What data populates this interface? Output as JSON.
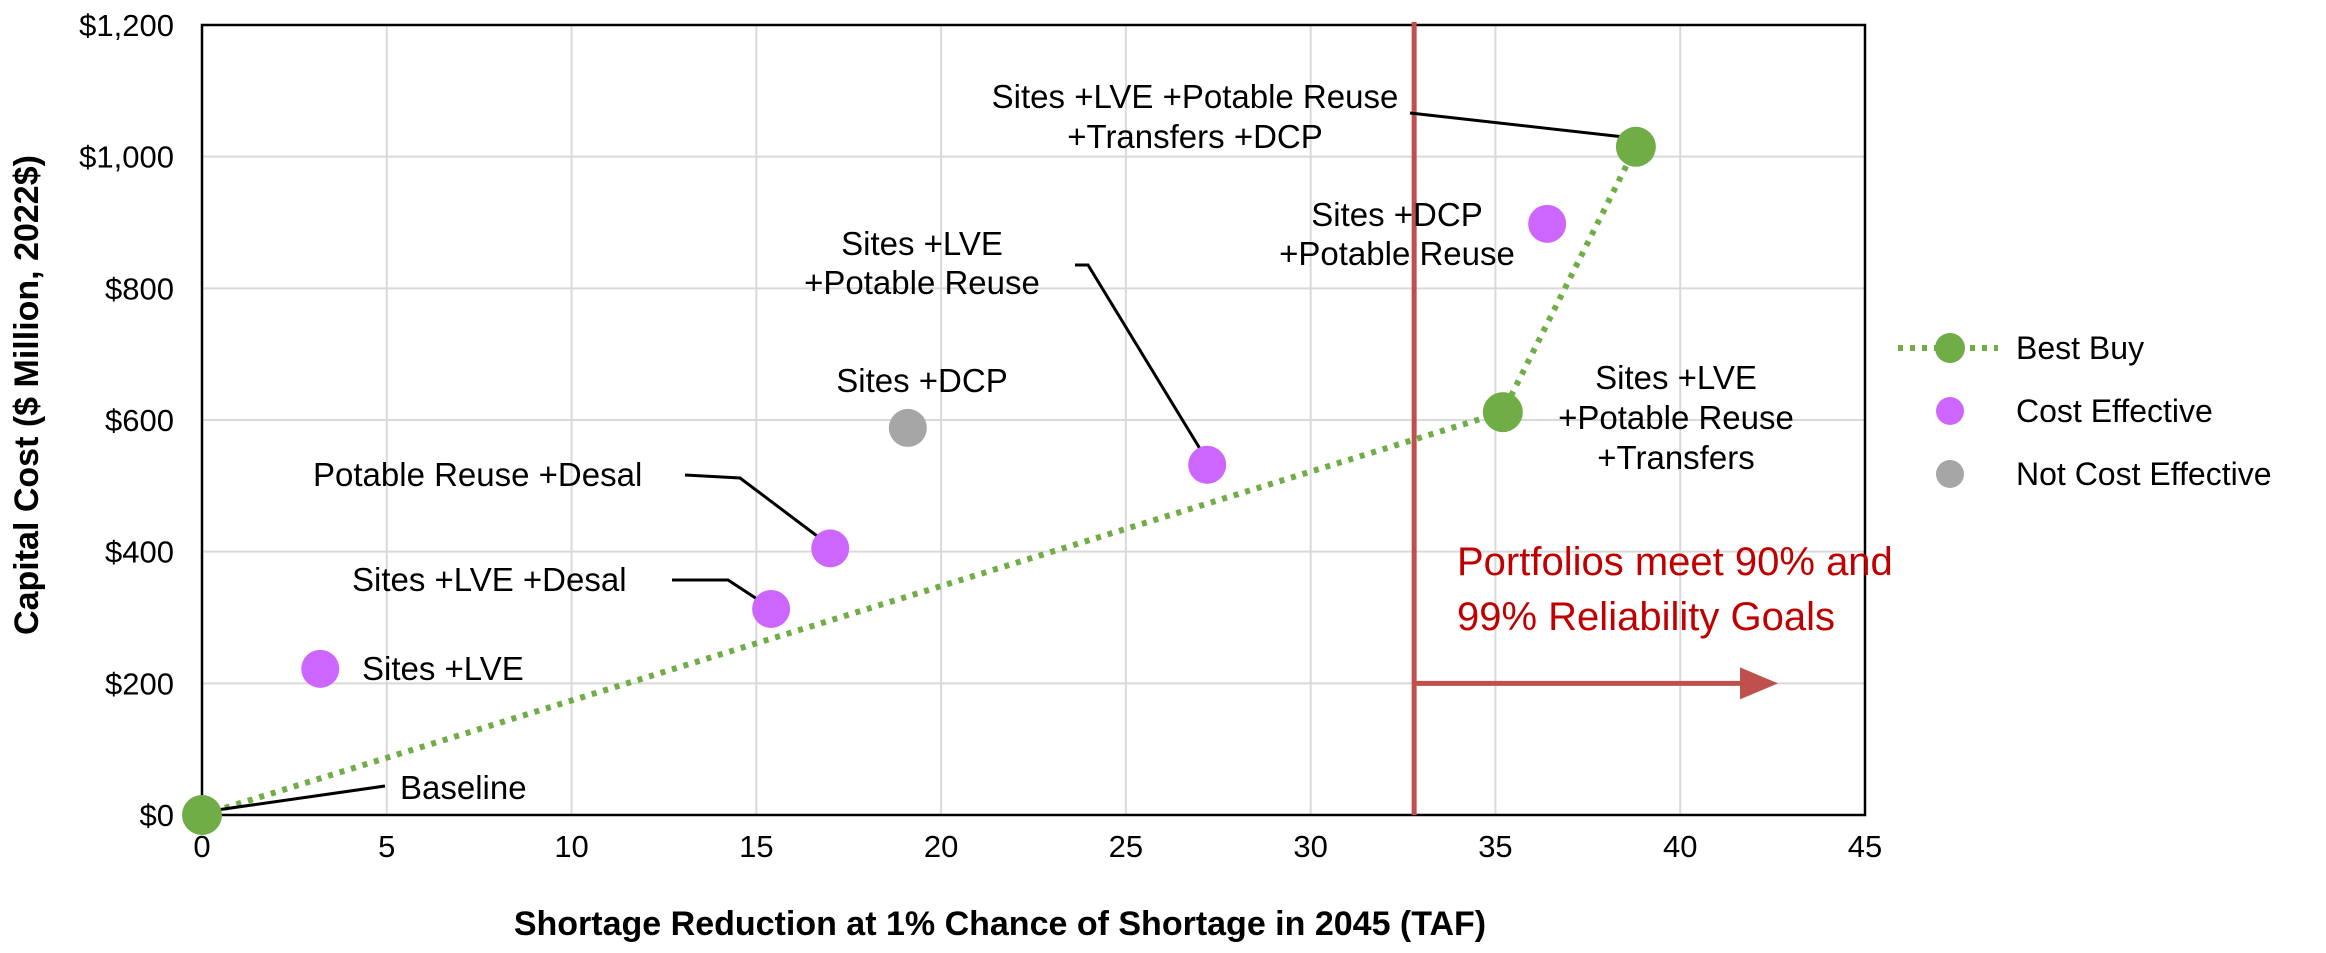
{
  "chart_data": {
    "type": "scatter",
    "xlabel": "Shortage Reduction at 1% Chance of Shortage in 2045 (TAF)",
    "ylabel": "Capital Cost ($ Million, 2022$)",
    "xlim": [
      0,
      45
    ],
    "ylim": [
      0,
      1200
    ],
    "x_ticks": [
      "0",
      "5",
      "10",
      "15",
      "20",
      "25",
      "30",
      "35",
      "40",
      "45"
    ],
    "y_ticks": [
      "$0",
      "$200",
      "$400",
      "$600",
      "$800",
      "$1,000",
      "$1,200"
    ],
    "grid": true,
    "legend_position": "right",
    "legend": [
      {
        "name": "Best Buy",
        "color": "#70ad47"
      },
      {
        "name": "Cost Effective",
        "color": "#cc66ff"
      },
      {
        "name": "Not Cost Effective",
        "color": "#a6a6a6"
      }
    ],
    "series": [
      {
        "name": "Best Buy",
        "color": "#70ad47",
        "line": "dotted",
        "points": [
          {
            "x": 0,
            "y": 0,
            "label": "Baseline"
          },
          {
            "x": 35.2,
            "y": 612,
            "label": "Sites +LVE +Potable Reuse +Transfers"
          },
          {
            "x": 38.8,
            "y": 1015,
            "label": "Sites +LVE +Potable Reuse +Transfers +DCP"
          }
        ]
      },
      {
        "name": "Cost Effective",
        "color": "#cc66ff",
        "points": [
          {
            "x": 3.2,
            "y": 222,
            "label": "Sites +LVE"
          },
          {
            "x": 15.4,
            "y": 313,
            "label": "Sites +LVE +Desal"
          },
          {
            "x": 17.0,
            "y": 405,
            "label": "Potable Reuse +Desal"
          },
          {
            "x": 27.2,
            "y": 532,
            "label": "Sites +LVE +Potable Reuse"
          },
          {
            "x": 36.4,
            "y": 898,
            "label": "Sites +DCP +Potable Reuse"
          }
        ]
      },
      {
        "name": "Not Cost Effective",
        "color": "#a6a6a6",
        "points": [
          {
            "x": 19.1,
            "y": 588,
            "label": "Sites +DCP"
          }
        ]
      }
    ],
    "reliability_line": {
      "x": 32.8,
      "color": "#c0504d"
    },
    "annotations": {
      "baseline": [
        "Baseline"
      ],
      "sites_lve": [
        "Sites +LVE"
      ],
      "sites_lve_desal": [
        "Sites +LVE +Desal"
      ],
      "potable_desal": [
        "Potable Reuse +Desal"
      ],
      "sites_dcp": [
        "Sites +DCP"
      ],
      "sites_lve_pr": [
        "Sites +LVE",
        "+Potable Reuse"
      ],
      "sites_dcp_pr": [
        "Sites +DCP",
        "+Potable Reuse"
      ],
      "sites_lve_pr_tr": [
        "Sites +LVE",
        "+Potable Reuse",
        "+Transfers"
      ],
      "sites_lve_pr_tr_dcp": [
        "Sites +LVE +Potable Reuse",
        "+Transfers +DCP"
      ],
      "goal": [
        "Portfolios meet 90% and",
        "99% Reliability Goals"
      ]
    }
  }
}
